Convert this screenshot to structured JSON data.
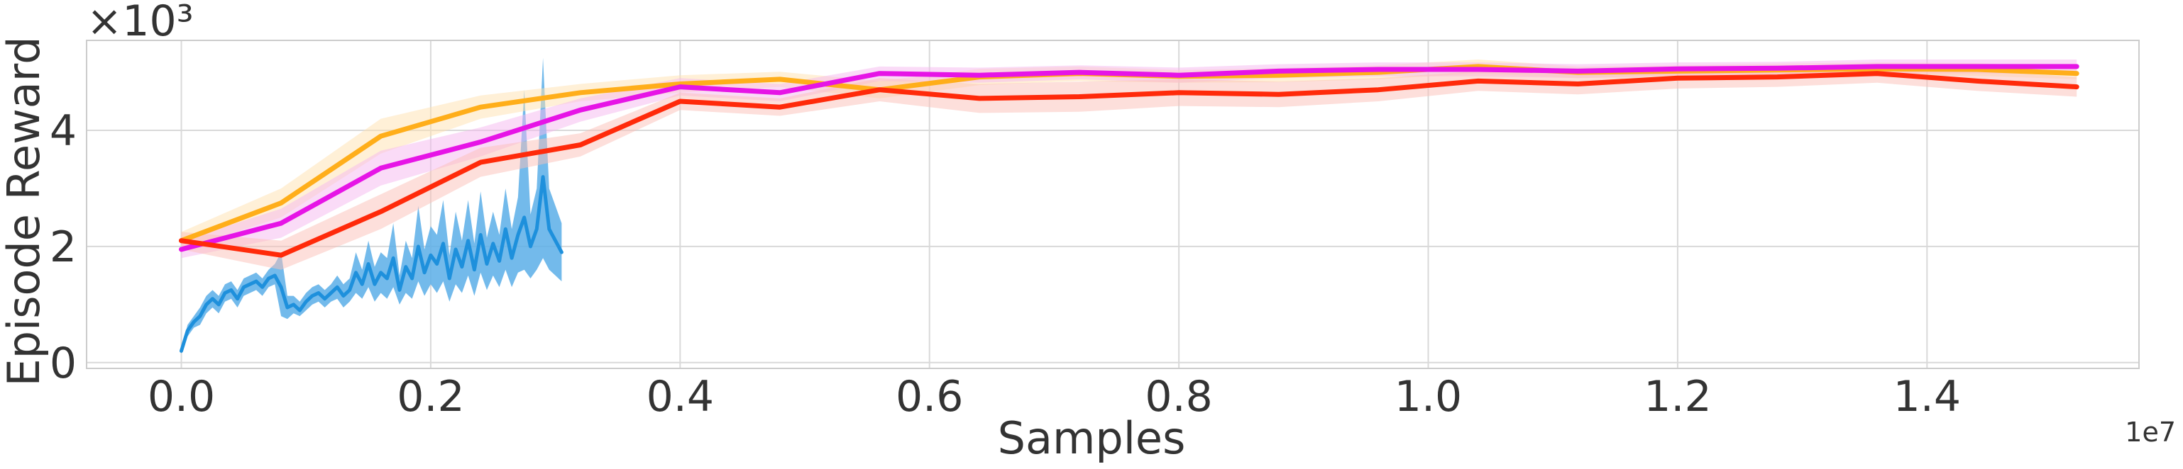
{
  "chart_data": {
    "type": "line",
    "xlabel": "Samples",
    "ylabel": "Episode Reward",
    "x_offset_text": "1e7",
    "y_offset_text": "×10³",
    "xlim": [
      -0.076,
      1.57
    ],
    "ylim": [
      -0.1,
      5.55
    ],
    "x_unit": "1e7",
    "y_unit": "1e3",
    "xticks": [
      0.0,
      0.2,
      0.4,
      0.6,
      0.8,
      1.0,
      1.2,
      1.4
    ],
    "xtick_labels": [
      "0.0",
      "0.2",
      "0.4",
      "0.6",
      "0.8",
      "1.0",
      "1.2",
      "1.4"
    ],
    "yticks": [
      0,
      2,
      4
    ],
    "ytick_labels": [
      "0",
      "2",
      "4"
    ],
    "grid": true,
    "series": [
      {
        "color": "#1e90dc",
        "band_color": "#5aaee8",
        "x": [
          0.0,
          0.005,
          0.01,
          0.015,
          0.02,
          0.025,
          0.03,
          0.035,
          0.04,
          0.045,
          0.05,
          0.055,
          0.06,
          0.065,
          0.07,
          0.075,
          0.08,
          0.085,
          0.09,
          0.095,
          0.1,
          0.105,
          0.11,
          0.115,
          0.12,
          0.125,
          0.13,
          0.135,
          0.14,
          0.145,
          0.15,
          0.155,
          0.16,
          0.165,
          0.17,
          0.175,
          0.18,
          0.185,
          0.19,
          0.195,
          0.2,
          0.205,
          0.21,
          0.215,
          0.22,
          0.225,
          0.23,
          0.235,
          0.24,
          0.245,
          0.25,
          0.255,
          0.26,
          0.265,
          0.27,
          0.275,
          0.28,
          0.285,
          0.29,
          0.295,
          0.3,
          0.305
        ],
        "y": [
          0.2,
          0.55,
          0.7,
          0.8,
          1.0,
          1.1,
          1.0,
          1.2,
          1.25,
          1.1,
          1.3,
          1.35,
          1.4,
          1.3,
          1.45,
          1.5,
          1.3,
          0.95,
          1.0,
          0.9,
          1.05,
          1.15,
          1.2,
          1.1,
          1.2,
          1.3,
          1.15,
          1.25,
          1.55,
          1.35,
          1.7,
          1.35,
          1.55,
          1.45,
          1.8,
          1.25,
          1.65,
          1.45,
          2.0,
          1.55,
          1.85,
          1.7,
          2.05,
          1.45,
          1.95,
          1.65,
          2.1,
          1.6,
          2.2,
          1.7,
          2.05,
          1.75,
          2.3,
          1.8,
          2.2,
          2.5,
          2.0,
          2.3,
          3.2,
          2.3,
          2.1,
          1.9
        ],
        "lower": [
          0.15,
          0.45,
          0.6,
          0.65,
          0.85,
          0.95,
          0.85,
          1.05,
          1.1,
          0.95,
          1.15,
          1.2,
          1.25,
          1.15,
          1.3,
          1.35,
          0.8,
          0.75,
          0.85,
          0.8,
          0.9,
          1.0,
          1.05,
          0.95,
          1.05,
          1.1,
          0.95,
          1.05,
          1.2,
          1.1,
          1.3,
          1.05,
          1.2,
          1.1,
          1.3,
          1.0,
          1.2,
          1.1,
          1.4,
          1.15,
          1.35,
          1.2,
          1.4,
          1.05,
          1.35,
          1.2,
          1.5,
          1.15,
          1.55,
          1.25,
          1.5,
          1.3,
          1.6,
          1.3,
          1.55,
          1.6,
          1.45,
          1.6,
          1.8,
          1.6,
          1.5,
          1.4
        ],
        "upper": [
          0.25,
          0.65,
          0.8,
          0.95,
          1.15,
          1.25,
          1.15,
          1.35,
          1.4,
          1.25,
          1.45,
          1.5,
          1.55,
          1.45,
          1.6,
          1.7,
          1.9,
          1.15,
          1.15,
          1.05,
          1.2,
          1.3,
          1.35,
          1.25,
          1.35,
          1.5,
          1.35,
          1.45,
          1.9,
          1.6,
          2.1,
          1.65,
          1.9,
          1.8,
          2.4,
          1.5,
          2.1,
          1.8,
          2.7,
          1.95,
          2.35,
          2.2,
          2.8,
          1.85,
          2.6,
          2.1,
          2.8,
          2.05,
          2.95,
          2.15,
          2.6,
          2.2,
          3.0,
          2.3,
          2.85,
          4.7,
          2.55,
          3.0,
          5.25,
          3.0,
          2.7,
          2.4
        ]
      },
      {
        "color": "#ffae1a",
        "band_color": "#ffe2b0",
        "x": [
          0.0,
          0.08,
          0.16,
          0.24,
          0.32,
          0.4,
          0.48,
          0.56,
          0.64,
          0.72,
          0.8,
          0.88,
          0.96,
          1.04,
          1.12,
          1.2,
          1.28,
          1.36,
          1.44,
          1.52
        ],
        "y": [
          2.1,
          2.75,
          3.9,
          4.4,
          4.65,
          4.8,
          4.88,
          4.7,
          4.92,
          4.98,
          4.93,
          4.95,
          5.0,
          5.1,
          5.0,
          5.02,
          5.04,
          5.06,
          5.05,
          4.98
        ],
        "lower": [
          1.95,
          2.5,
          3.6,
          4.2,
          4.5,
          4.65,
          4.75,
          4.55,
          4.78,
          4.85,
          4.82,
          4.83,
          4.88,
          4.98,
          4.9,
          4.92,
          4.93,
          4.95,
          4.94,
          4.88
        ],
        "upper": [
          2.25,
          3.0,
          4.2,
          4.6,
          4.8,
          4.95,
          5.01,
          4.85,
          5.06,
          5.1,
          5.04,
          5.07,
          5.12,
          5.22,
          5.1,
          5.12,
          5.15,
          5.17,
          5.16,
          5.08
        ]
      },
      {
        "color": "#e614e6",
        "band_color": "#f5b8f0",
        "x": [
          0.0,
          0.08,
          0.16,
          0.24,
          0.32,
          0.4,
          0.48,
          0.56,
          0.64,
          0.72,
          0.8,
          0.88,
          0.96,
          1.04,
          1.12,
          1.2,
          1.28,
          1.36,
          1.44,
          1.52
        ],
        "y": [
          1.95,
          2.4,
          3.35,
          3.8,
          4.35,
          4.75,
          4.65,
          4.98,
          4.95,
          5.0,
          4.95,
          5.02,
          5.05,
          5.05,
          5.02,
          5.06,
          5.07,
          5.1,
          5.1,
          5.1
        ],
        "lower": [
          1.8,
          2.15,
          3.05,
          3.55,
          4.15,
          4.6,
          4.5,
          4.85,
          4.82,
          4.88,
          4.82,
          4.9,
          4.93,
          4.93,
          4.9,
          4.95,
          4.96,
          4.98,
          4.98,
          4.98
        ],
        "upper": [
          2.1,
          2.65,
          3.65,
          4.05,
          4.55,
          4.9,
          4.8,
          5.1,
          5.08,
          5.12,
          5.08,
          5.14,
          5.17,
          5.17,
          5.14,
          5.17,
          5.18,
          5.22,
          5.22,
          5.22
        ]
      },
      {
        "color": "#ff2a0a",
        "band_color": "#fbc0b8",
        "x": [
          0.0,
          0.08,
          0.16,
          0.24,
          0.32,
          0.4,
          0.48,
          0.56,
          0.64,
          0.72,
          0.8,
          0.88,
          0.96,
          1.04,
          1.12,
          1.2,
          1.28,
          1.36,
          1.44,
          1.52
        ],
        "y": [
          2.1,
          1.85,
          2.6,
          3.45,
          3.75,
          4.5,
          4.4,
          4.7,
          4.55,
          4.58,
          4.65,
          4.62,
          4.7,
          4.85,
          4.8,
          4.9,
          4.92,
          4.98,
          4.85,
          4.75
        ],
        "lower": [
          1.95,
          1.6,
          2.3,
          3.2,
          3.55,
          4.35,
          4.25,
          4.5,
          4.3,
          4.32,
          4.42,
          4.4,
          4.5,
          4.68,
          4.62,
          4.72,
          4.75,
          4.82,
          4.68,
          4.58
        ],
        "upper": [
          2.25,
          2.1,
          2.9,
          3.7,
          3.95,
          4.65,
          4.55,
          4.9,
          4.8,
          4.84,
          4.88,
          4.84,
          4.9,
          5.02,
          4.98,
          5.08,
          5.09,
          5.14,
          5.02,
          4.92
        ]
      }
    ]
  }
}
